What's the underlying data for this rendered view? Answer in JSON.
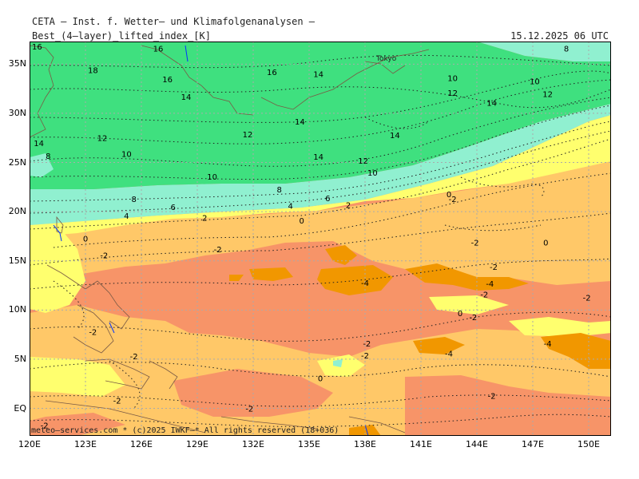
{
  "header": {
    "institute": "CETA – Inst. f. Wetter– und Klimafolgenanalysen –",
    "parameter": "Best_(4–layer)_lifted_index_[K]",
    "valid_time": "15.12.2025 06 UTC"
  },
  "credit": "meteo–services.com * (c)2025 IWKF–* All rights reserved (18+036)",
  "city": "Tokyo",
  "axes": {
    "lat_labels": [
      "35N",
      "30N",
      "25N",
      "20N",
      "15N",
      "10N",
      "5N",
      "EQ"
    ],
    "lon_labels": [
      "120E",
      "123E",
      "126E",
      "129E",
      "132E",
      "135E",
      "138E",
      "141E",
      "144E",
      "147E",
      "150E"
    ]
  },
  "colors": {
    "green": "#3fe07f",
    "aqua": "#90f0d0",
    "yellow": "#ffff6e",
    "lightorange": "#ffc868",
    "salmon": "#f79468",
    "orange": "#f19700",
    "grid": "#aaaaaa",
    "river": "#0033ff"
  },
  "contour_labels": [
    {
      "text": "16",
      "lon": 120.4,
      "lat": 36.8
    },
    {
      "text": "16",
      "lon": 126.9,
      "lat": 36.6
    },
    {
      "text": "8",
      "lon": 148.8,
      "lat": 36.6
    },
    {
      "text": "18",
      "lon": 123.4,
      "lat": 34.4
    },
    {
      "text": "16",
      "lon": 127.4,
      "lat": 33.5
    },
    {
      "text": "16",
      "lon": 133.0,
      "lat": 34.2
    },
    {
      "text": "14",
      "lon": 135.5,
      "lat": 34.0
    },
    {
      "text": "10",
      "lon": 147.1,
      "lat": 33.3
    },
    {
      "text": "10",
      "lon": 142.7,
      "lat": 33.6
    },
    {
      "text": "12",
      "lon": 142.7,
      "lat": 32.1
    },
    {
      "text": "12",
      "lon": 147.8,
      "lat": 32.0
    },
    {
      "text": "14",
      "lon": 128.4,
      "lat": 31.7
    },
    {
      "text": "14",
      "lon": 144.8,
      "lat": 31.1
    },
    {
      "text": "14",
      "lon": 120.5,
      "lat": 27.0
    },
    {
      "text": "14",
      "lon": 134.5,
      "lat": 29.2
    },
    {
      "text": "14",
      "lon": 139.6,
      "lat": 27.8
    },
    {
      "text": "12",
      "lon": 123.9,
      "lat": 27.5
    },
    {
      "text": "12",
      "lon": 131.7,
      "lat": 27.9
    },
    {
      "text": "8",
      "lon": 121.0,
      "lat": 25.7
    },
    {
      "text": "10",
      "lon": 125.2,
      "lat": 25.9
    },
    {
      "text": "14",
      "lon": 135.5,
      "lat": 25.6
    },
    {
      "text": "12",
      "lon": 137.9,
      "lat": 25.2
    },
    {
      "text": "10",
      "lon": 129.8,
      "lat": 23.6
    },
    {
      "text": "10",
      "lon": 138.4,
      "lat": 24.0
    },
    {
      "text": "8",
      "lon": 133.4,
      "lat": 22.3
    },
    {
      "text": "6",
      "lon": 136.0,
      "lat": 21.4
    },
    {
      "text": "8",
      "lon": 125.6,
      "lat": 21.3
    },
    {
      "text": "6",
      "lon": 127.7,
      "lat": 20.5
    },
    {
      "text": "4",
      "lon": 134.0,
      "lat": 20.6
    },
    {
      "text": "2",
      "lon": 137.1,
      "lat": 20.7
    },
    {
      "text": "4",
      "lon": 125.2,
      "lat": 19.6
    },
    {
      "text": "2",
      "lon": 129.4,
      "lat": 19.4
    },
    {
      "text": "0",
      "lon": 142.5,
      "lat": 21.8
    },
    {
      "text": "-2",
      "lon": 142.7,
      "lat": 21.3
    },
    {
      "text": "0",
      "lon": 134.6,
      "lat": 19.1
    },
    {
      "text": "0",
      "lon": 123.0,
      "lat": 17.3
    },
    {
      "text": "-2",
      "lon": 143.9,
      "lat": 16.9
    },
    {
      "text": "0",
      "lon": 147.7,
      "lat": 16.9
    },
    {
      "text": "-2",
      "lon": 130.1,
      "lat": 16.2
    },
    {
      "text": "-2",
      "lon": 124.0,
      "lat": 15.6
    },
    {
      "text": "-2",
      "lon": 144.9,
      "lat": 14.4
    },
    {
      "text": "-4",
      "lon": 138.0,
      "lat": 12.8
    },
    {
      "text": "-4",
      "lon": 144.7,
      "lat": 12.7
    },
    {
      "text": "-2",
      "lon": 144.4,
      "lat": 11.6
    },
    {
      "text": "-2",
      "lon": 149.9,
      "lat": 11.3
    },
    {
      "text": "0",
      "lon": 143.1,
      "lat": 9.7
    },
    {
      "text": "-2",
      "lon": 143.8,
      "lat": 9.3
    },
    {
      "text": "-2",
      "lon": 123.4,
      "lat": 7.8
    },
    {
      "text": "-2",
      "lon": 138.1,
      "lat": 6.6
    },
    {
      "text": "-4",
      "lon": 147.8,
      "lat": 6.6
    },
    {
      "text": "-2",
      "lon": 138.0,
      "lat": 5.4
    },
    {
      "text": "-4",
      "lon": 142.5,
      "lat": 5.6
    },
    {
      "text": "-2",
      "lon": 125.6,
      "lat": 5.3
    },
    {
      "text": "0",
      "lon": 135.6,
      "lat": 3.1
    },
    {
      "text": "-2",
      "lon": 144.8,
      "lat": 1.3
    },
    {
      "text": "-2",
      "lon": 124.7,
      "lat": 0.8
    },
    {
      "text": "-2",
      "lon": 131.8,
      "lat": 0.0
    },
    {
      "text": "-2",
      "lon": 120.8,
      "lat": -1.7
    }
  ]
}
